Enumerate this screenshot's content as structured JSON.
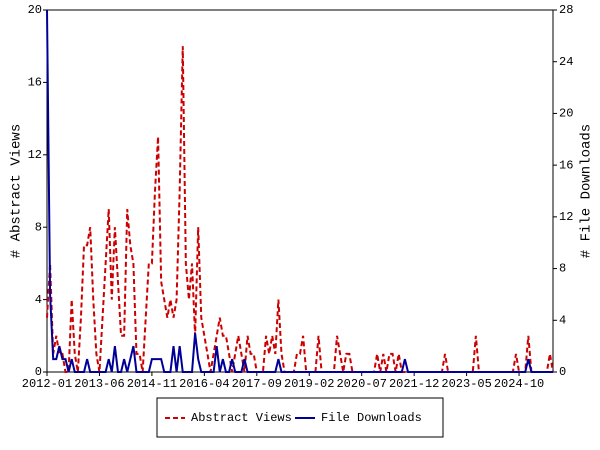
{
  "chart_data": {
    "type": "line",
    "y_label": "# Abstract Views",
    "y2_label": "# File Downloads",
    "categories": [
      "2012-01",
      null,
      null,
      null,
      null,
      null,
      null,
      null,
      null,
      null,
      null,
      null,
      null,
      null,
      null,
      null,
      null,
      "2013-06",
      null,
      null,
      null,
      null,
      null,
      null,
      null,
      null,
      null,
      null,
      null,
      null,
      null,
      null,
      null,
      null,
      "2014-11",
      null,
      null,
      null,
      null,
      null,
      null,
      null,
      null,
      null,
      null,
      null,
      null,
      null,
      null,
      null,
      null,
      "2016-04",
      null,
      null,
      null,
      null,
      null,
      null,
      null,
      null,
      null,
      null,
      null,
      null,
      null,
      null,
      null,
      null,
      "2017-09",
      null,
      null,
      null,
      null,
      null,
      null,
      null,
      null,
      null,
      null,
      null,
      null,
      null,
      null,
      null,
      null,
      "2019-02",
      null,
      null,
      null,
      null,
      null,
      null,
      null,
      null,
      null,
      null,
      null,
      null,
      null,
      null,
      null,
      null,
      "2020-07",
      null,
      null,
      null,
      null,
      null,
      null,
      null,
      null,
      null,
      null,
      null,
      null,
      null,
      null,
      null,
      null,
      "2021-12",
      null,
      null,
      null,
      null,
      null,
      null,
      null,
      null,
      null,
      null,
      null,
      null,
      null,
      null,
      null,
      null,
      "2023-05",
      null,
      null,
      null,
      null,
      null,
      null,
      null,
      null,
      null,
      null,
      null,
      null,
      null,
      null,
      null,
      null,
      "2024-10",
      null,
      null,
      null,
      null,
      null,
      null,
      null,
      null,
      null,
      null,
      null
    ],
    "series": [
      {
        "name": "Abstract Views",
        "color": "#cc0000",
        "dashed": true,
        "values": [
          3,
          6,
          1,
          2,
          1,
          1,
          0,
          0,
          4,
          1,
          0,
          3,
          7,
          7,
          8,
          4,
          1,
          0,
          3,
          6,
          9,
          4,
          8,
          5,
          2,
          2,
          9,
          7,
          6,
          1,
          1,
          0,
          3,
          6,
          6,
          10,
          13,
          5,
          4,
          3,
          4,
          3,
          4,
          10,
          18,
          6,
          4,
          6,
          2,
          8,
          3,
          2,
          1,
          0,
          1,
          2,
          3,
          2,
          2,
          1,
          0,
          1,
          2,
          1,
          0,
          2,
          1,
          1,
          0,
          0,
          0,
          2,
          1,
          2,
          1,
          4,
          1,
          0,
          0,
          0,
          0,
          1,
          1,
          2,
          0,
          0,
          0,
          0,
          2,
          0,
          0,
          0,
          0,
          0,
          2,
          1,
          0,
          1,
          1,
          0,
          0,
          0,
          0,
          0,
          0,
          0,
          0,
          1,
          0,
          1,
          0,
          1,
          1,
          0,
          1,
          0,
          0,
          0,
          0,
          0,
          0,
          0,
          0,
          0,
          0,
          0,
          0,
          0,
          0,
          1,
          0,
          0,
          0,
          0,
          0,
          0,
          0,
          0,
          0,
          2,
          0,
          0,
          0,
          0,
          0,
          0,
          0,
          0,
          0,
          0,
          0,
          0,
          1,
          0,
          0,
          0,
          2,
          0,
          0,
          0,
          0,
          0,
          0,
          1,
          0
        ]
      },
      {
        "name": "File Downloads",
        "color": "#000099",
        "dashed": false,
        "axis": "y2",
        "values": [
          28,
          6,
          1,
          1,
          2,
          1,
          1,
          0,
          1,
          0,
          0,
          0,
          0,
          1,
          0,
          0,
          0,
          0,
          0,
          0,
          1,
          0,
          2,
          0,
          0,
          1,
          0,
          1,
          2,
          0,
          0,
          0,
          0,
          0,
          1,
          1,
          1,
          1,
          0,
          0,
          0,
          2,
          0,
          2,
          0,
          0,
          0,
          0,
          3,
          1,
          0,
          0,
          0,
          0,
          0,
          2,
          0,
          1,
          0,
          0,
          1,
          0,
          0,
          0,
          1,
          0,
          0,
          0,
          0,
          0,
          0,
          0,
          0,
          0,
          0,
          1,
          0,
          0,
          0,
          0,
          0,
          0,
          0,
          0,
          0,
          0,
          0,
          0,
          0,
          0,
          0,
          0,
          0,
          0,
          0,
          0,
          0,
          0,
          0,
          0,
          0,
          0,
          0,
          0,
          0,
          0,
          0,
          0,
          0,
          0,
          0,
          0,
          0,
          0,
          0,
          0,
          1,
          0,
          0,
          0,
          0,
          0,
          0,
          0,
          0,
          0,
          0,
          0,
          0,
          0,
          0,
          0,
          0,
          0,
          0,
          0,
          0,
          0,
          0,
          0,
          0,
          0,
          0,
          0,
          0,
          0,
          0,
          0,
          0,
          0,
          0,
          0,
          0,
          0,
          0,
          0,
          1,
          0,
          0,
          0,
          0,
          0,
          0,
          0,
          0
        ]
      }
    ],
    "ylim": [
      0,
      20
    ],
    "yticks": [
      0,
      4,
      8,
      12,
      16,
      20
    ],
    "y2lim": [
      0,
      28
    ],
    "y2ticks": [
      0,
      4,
      8,
      12,
      16,
      20,
      24,
      28
    ],
    "grid": false,
    "legend": "bottom"
  }
}
